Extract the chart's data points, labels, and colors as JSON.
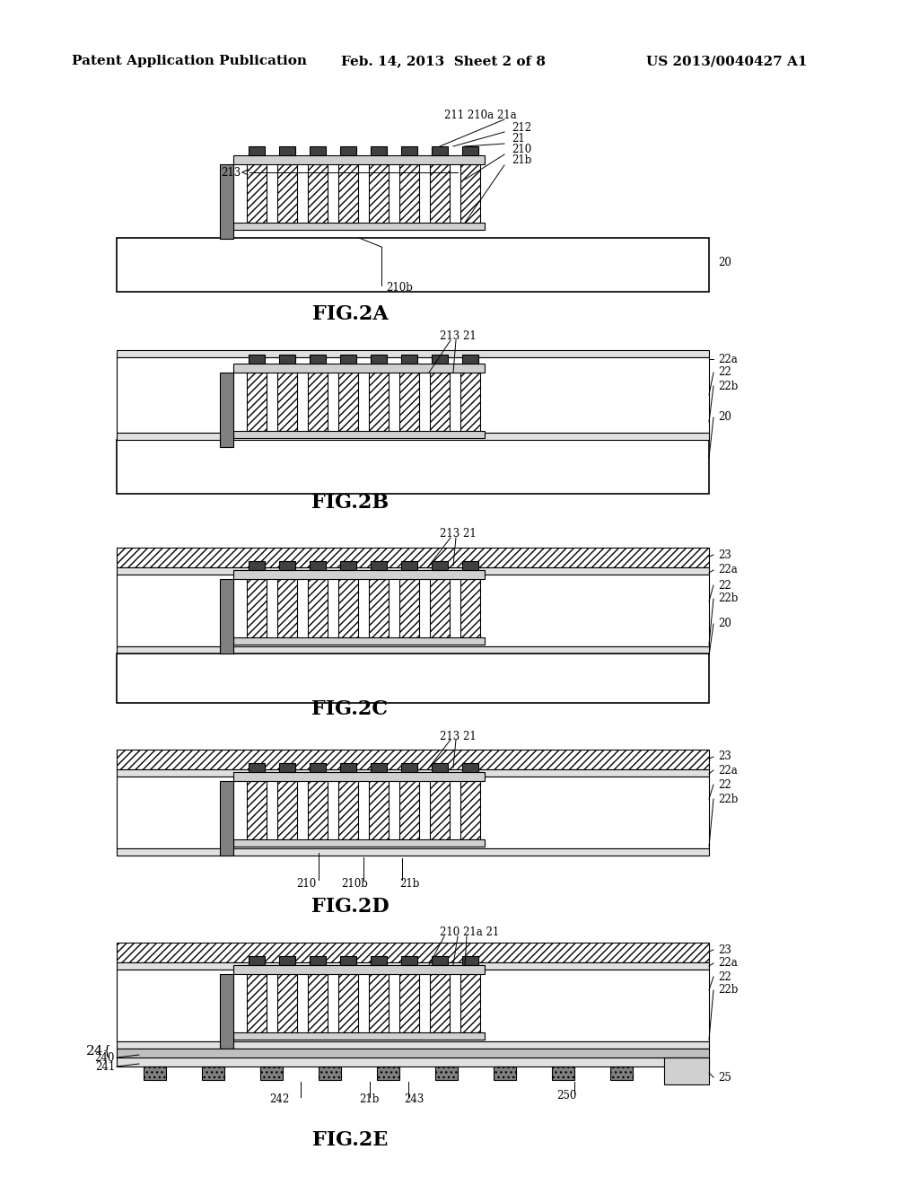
{
  "bg_color": "#ffffff",
  "header_left": "Patent Application Publication",
  "header_mid": "Feb. 14, 2013  Sheet 2 of 8",
  "header_right": "US 2013/0040427 A1",
  "figures": [
    "FIG.2A",
    "FIG.2B",
    "FIG.2C",
    "FIG.2D",
    "FIG.2E"
  ]
}
